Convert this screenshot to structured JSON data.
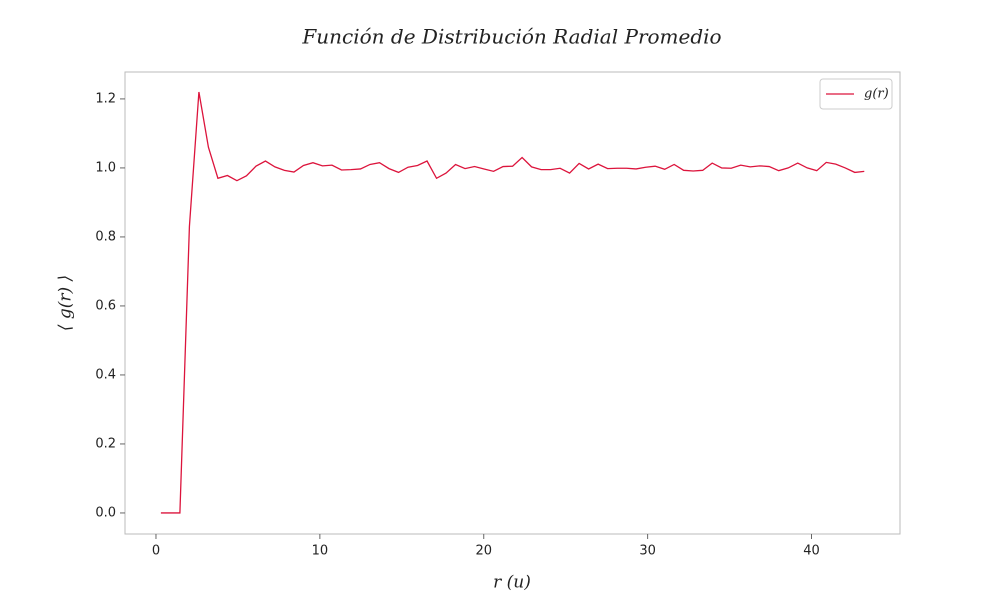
{
  "chart_data": {
    "type": "line",
    "title": "Función de Distribución Radial Promedio",
    "xlabel": "r (u)",
    "ylabel": "⟨ g(r) ⟩",
    "x": [
      0.3,
      0.88,
      1.46,
      2.04,
      2.62,
      3.2,
      3.78,
      4.36,
      4.94,
      5.52,
      6.1,
      6.68,
      7.26,
      7.84,
      8.42,
      9.0,
      9.58,
      10.16,
      10.74,
      11.32,
      11.9,
      12.48,
      13.06,
      13.64,
      14.22,
      14.8,
      15.38,
      15.96,
      16.54,
      17.12,
      17.7,
      18.28,
      18.86,
      19.44,
      20.02,
      20.6,
      21.18,
      21.76,
      22.34,
      22.92,
      23.5,
      24.08,
      24.66,
      25.24,
      25.82,
      26.4,
      26.98,
      27.56,
      28.14,
      28.72,
      29.3,
      29.88,
      30.46,
      31.04,
      31.62,
      32.2,
      32.78,
      33.36,
      33.94,
      34.52,
      35.1,
      35.68,
      36.26,
      36.84,
      37.42,
      38.0,
      38.58,
      39.16,
      39.74,
      40.32,
      40.9,
      41.48,
      42.06,
      42.64,
      43.22
    ],
    "series": [
      {
        "name": "g(r)",
        "color": "#dc143c",
        "values": [
          0,
          0,
          0,
          0.83,
          1.22,
          1.06,
          0.97,
          0.978,
          0.963,
          0.977,
          1.005,
          1.02,
          1.003,
          0.993,
          0.988,
          1.007,
          1.015,
          1.006,
          1.008,
          0.994,
          0.995,
          0.997,
          1.01,
          1.015,
          0.998,
          0.987,
          1.002,
          1.007,
          1.02,
          0.97,
          0.985,
          1.01,
          0.998,
          1.004,
          0.997,
          0.99,
          1.004,
          1.005,
          1.03,
          1.003,
          0.995,
          0.995,
          0.999,
          0.985,
          1.013,
          0.997,
          1.011,
          0.998,
          0.999,
          0.999,
          0.997,
          1.002,
          1.005,
          0.996,
          1.01,
          0.993,
          0.991,
          0.993,
          1.014,
          1.0,
          0.999,
          1.008,
          1.003,
          1.006,
          1.004,
          0.992,
          1.0,
          1.014,
          1.0,
          0.992,
          1.016,
          1.011,
          1.0,
          0.987,
          0.99
        ]
      }
    ],
    "xlim": [
      -1.89,
      45.4
    ],
    "ylim": [
      -0.061,
      1.278
    ],
    "xticks": [
      0,
      10,
      20,
      30,
      40
    ],
    "yticks": [
      {
        "value": 0,
        "label": "0.0"
      },
      0.2,
      0.4,
      0.6,
      0.8,
      {
        "value": 1,
        "label": "1.0"
      },
      1.2
    ],
    "legend": "upper right",
    "grid": false
  }
}
